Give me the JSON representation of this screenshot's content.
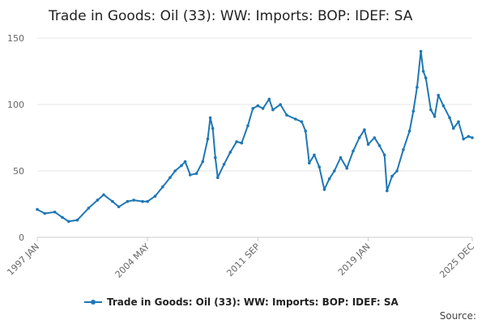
{
  "chart_data": {
    "type": "line",
    "title": "Trade in Goods: Oil (33): WW: Imports: BOP: IDEF: SA",
    "xlabel": "",
    "ylabel": "",
    "x_tick_labels": [
      "1997 JAN",
      "2004 MAY",
      "2011 SEP",
      "2019 JAN",
      "2025 DEC"
    ],
    "y_tick_labels": [
      "0",
      "50",
      "100",
      "150"
    ],
    "ylim": [
      0,
      150
    ],
    "grid": true,
    "legend_position": "bottom",
    "source_label": "Source:",
    "series": [
      {
        "name": "Trade in Goods: Oil (33): WW: Imports: BOP: IDEF: SA",
        "color": "#1f77b4",
        "points": [
          [
            "1997-01",
            21
          ],
          [
            "1997-07",
            18
          ],
          [
            "1998-03",
            19
          ],
          [
            "1998-09",
            15
          ],
          [
            "1999-02",
            12
          ],
          [
            "1999-09",
            13
          ],
          [
            "2000-06",
            22
          ],
          [
            "2001-01",
            28
          ],
          [
            "2001-06",
            32
          ],
          [
            "2002-01",
            27
          ],
          [
            "2002-06",
            23
          ],
          [
            "2003-01",
            27
          ],
          [
            "2003-06",
            28
          ],
          [
            "2004-01",
            27
          ],
          [
            "2004-05",
            27
          ],
          [
            "2004-11",
            31
          ],
          [
            "2005-05",
            38
          ],
          [
            "2005-11",
            45
          ],
          [
            "2006-03",
            50
          ],
          [
            "2006-08",
            54
          ],
          [
            "2006-11",
            57
          ],
          [
            "2007-03",
            47
          ],
          [
            "2007-08",
            48
          ],
          [
            "2008-01",
            57
          ],
          [
            "2008-05",
            74
          ],
          [
            "2008-07",
            90
          ],
          [
            "2008-09",
            82
          ],
          [
            "2008-11",
            60
          ],
          [
            "2009-01",
            45
          ],
          [
            "2009-06",
            55
          ],
          [
            "2009-11",
            64
          ],
          [
            "2010-04",
            72
          ],
          [
            "2010-08",
            71
          ],
          [
            "2011-01",
            84
          ],
          [
            "2011-05",
            97
          ],
          [
            "2011-09",
            99
          ],
          [
            "2012-01",
            97
          ],
          [
            "2012-06",
            104
          ],
          [
            "2012-09",
            96
          ],
          [
            "2013-03",
            100
          ],
          [
            "2013-08",
            92
          ],
          [
            "2014-03",
            89
          ],
          [
            "2014-08",
            87
          ],
          [
            "2014-11",
            80
          ],
          [
            "2015-02",
            56
          ],
          [
            "2015-06",
            62
          ],
          [
            "2015-10",
            53
          ],
          [
            "2016-02",
            36
          ],
          [
            "2016-06",
            44
          ],
          [
            "2016-10",
            50
          ],
          [
            "2017-03",
            60
          ],
          [
            "2017-08",
            52
          ],
          [
            "2018-01",
            65
          ],
          [
            "2018-06",
            75
          ],
          [
            "2018-10",
            81
          ],
          [
            "2019-01",
            70
          ],
          [
            "2019-06",
            75
          ],
          [
            "2019-10",
            69
          ],
          [
            "2020-02",
            62
          ],
          [
            "2020-04",
            35
          ],
          [
            "2020-08",
            46
          ],
          [
            "2020-12",
            50
          ],
          [
            "2021-05",
            66
          ],
          [
            "2021-10",
            80
          ],
          [
            "2022-01",
            95
          ],
          [
            "2022-04",
            113
          ],
          [
            "2022-07",
            140
          ],
          [
            "2022-09",
            125
          ],
          [
            "2022-11",
            120
          ],
          [
            "2023-03",
            96
          ],
          [
            "2023-06",
            91
          ],
          [
            "2023-09",
            107
          ],
          [
            "2024-01",
            99
          ],
          [
            "2024-06",
            90
          ],
          [
            "2024-09",
            82
          ],
          [
            "2025-01",
            87
          ],
          [
            "2025-05",
            74
          ],
          [
            "2025-09",
            76
          ],
          [
            "2025-12",
            75
          ]
        ]
      }
    ]
  }
}
